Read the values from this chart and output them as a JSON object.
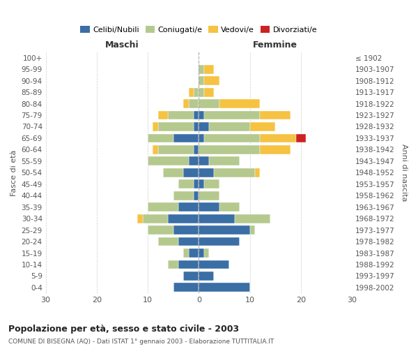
{
  "age_groups": [
    "0-4",
    "5-9",
    "10-14",
    "15-19",
    "20-24",
    "25-29",
    "30-34",
    "35-39",
    "40-44",
    "45-49",
    "50-54",
    "55-59",
    "60-64",
    "65-69",
    "70-74",
    "75-79",
    "80-84",
    "85-89",
    "90-94",
    "95-99",
    "100+"
  ],
  "birth_years": [
    "1998-2002",
    "1993-1997",
    "1988-1992",
    "1983-1987",
    "1978-1982",
    "1973-1977",
    "1968-1972",
    "1963-1967",
    "1958-1962",
    "1953-1957",
    "1948-1952",
    "1943-1947",
    "1938-1942",
    "1933-1937",
    "1928-1932",
    "1923-1927",
    "1918-1922",
    "1913-1917",
    "1908-1912",
    "1903-1907",
    "≤ 1902"
  ],
  "maschi": {
    "celibi": [
      5,
      3,
      4,
      2,
      4,
      5,
      6,
      4,
      1,
      1,
      3,
      2,
      1,
      5,
      1,
      1,
      0,
      0,
      0,
      0,
      0
    ],
    "coniugati": [
      0,
      0,
      2,
      1,
      4,
      5,
      5,
      6,
      4,
      3,
      4,
      8,
      7,
      5,
      7,
      5,
      2,
      1,
      0,
      0,
      0
    ],
    "vedovi": [
      0,
      0,
      0,
      0,
      0,
      0,
      1,
      0,
      0,
      0,
      0,
      0,
      1,
      0,
      1,
      2,
      1,
      1,
      0,
      0,
      0
    ],
    "divorziati": [
      0,
      0,
      0,
      0,
      0,
      0,
      0,
      0,
      0,
      0,
      0,
      0,
      0,
      0,
      0,
      0,
      0,
      0,
      0,
      0,
      0
    ]
  },
  "femmine": {
    "nubili": [
      10,
      3,
      6,
      1,
      8,
      10,
      7,
      4,
      0,
      1,
      3,
      2,
      0,
      1,
      2,
      1,
      0,
      0,
      0,
      0,
      0
    ],
    "coniugate": [
      0,
      0,
      0,
      1,
      0,
      1,
      7,
      4,
      4,
      3,
      8,
      6,
      12,
      11,
      8,
      11,
      4,
      1,
      1,
      1,
      0
    ],
    "vedove": [
      0,
      0,
      0,
      0,
      0,
      0,
      0,
      0,
      0,
      0,
      1,
      0,
      6,
      7,
      5,
      6,
      8,
      2,
      3,
      2,
      0
    ],
    "divorziate": [
      0,
      0,
      0,
      0,
      0,
      0,
      0,
      0,
      0,
      0,
      0,
      0,
      0,
      2,
      0,
      0,
      0,
      0,
      0,
      0,
      0
    ]
  },
  "colors": {
    "celibi_nubili": "#3a6ea5",
    "coniugati": "#b5c98e",
    "vedovi": "#f5c242",
    "divorziati": "#cc2222"
  },
  "title": "Popolazione per età, sesso e stato civile - 2003",
  "subtitle": "COMUNE DI BISEGNA (AQ) - Dati ISTAT 1° gennaio 2003 - Elaborazione TUTTITALIA.IT",
  "xlabel_left": "Maschi",
  "xlabel_right": "Femmine",
  "ylabel_left": "Fasce di età",
  "ylabel_right": "Anni di nascita",
  "xlim": 30,
  "background_color": "#ffffff",
  "grid_color": "#cccccc",
  "legend_labels": [
    "Celibi/Nubili",
    "Coniugati/e",
    "Vedovi/e",
    "Divorziati/e"
  ]
}
